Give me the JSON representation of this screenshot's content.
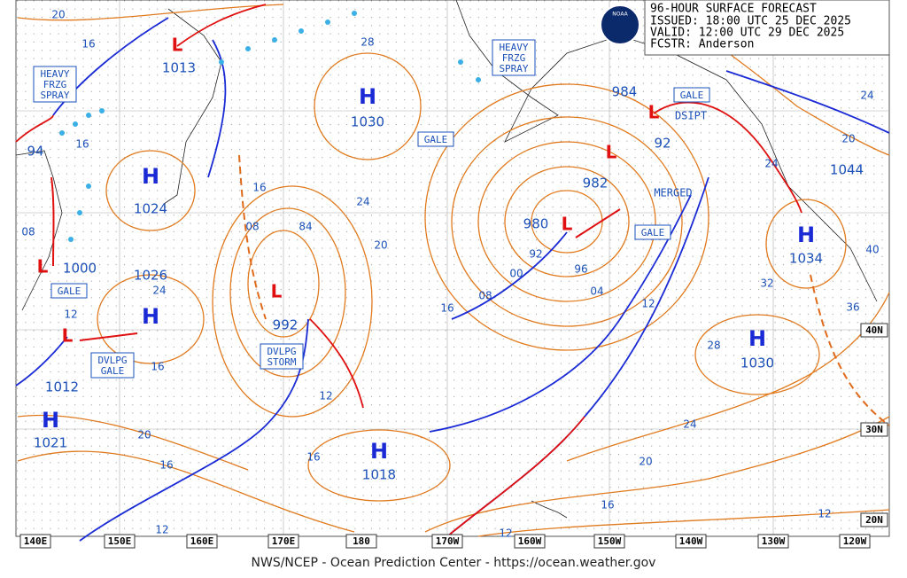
{
  "header": {
    "title": "96-HOUR SURFACE FORECAST",
    "issued": "ISSUED: 18:00 UTC 25 DEC 2025",
    "valid": "VALID:  12:00 UTC 29 DEC 2025",
    "forecaster": "FCSTR:  Anderson"
  },
  "logo": "NOAA",
  "footer": "NWS/NCEP - Ocean Prediction Center - https://ocean.weather.gov",
  "longitude_labels": [
    "140E",
    "150E",
    "160E",
    "170E",
    "180",
    "170W",
    "160W",
    "150W",
    "140W",
    "130W",
    "120W"
  ],
  "latitude_labels": [
    "40N",
    "30N",
    "20N"
  ],
  "highs": [
    {
      "symbol": "H",
      "pressure": "1030"
    },
    {
      "symbol": "H",
      "pressure": "1024"
    },
    {
      "symbol": "H",
      "pressure": "1026"
    },
    {
      "symbol": "H",
      "pressure": "1021"
    },
    {
      "symbol": "H",
      "pressure": "1018"
    },
    {
      "symbol": "H",
      "pressure": "1034"
    },
    {
      "symbol": "H",
      "pressure": "1030"
    }
  ],
  "lows": [
    {
      "symbol": "L",
      "pressure": "1013"
    },
    {
      "symbol": "L",
      "pressure": "1000"
    },
    {
      "symbol": "L",
      "pressure": "1012"
    },
    {
      "symbol": "L",
      "pressure": "992"
    },
    {
      "symbol": "L",
      "pressure": "980"
    },
    {
      "symbol": "L",
      "pressure": "982"
    },
    {
      "symbol": "L",
      "pressure": "984"
    }
  ],
  "other_pressure_labels": [
    "94",
    "92",
    "1044"
  ],
  "warnings": [
    {
      "lines": [
        "HEAVY",
        "FRZG",
        "SPRAY"
      ]
    },
    {
      "lines": [
        "GALE"
      ]
    },
    {
      "lines": [
        "DVLPG",
        "GALE"
      ]
    },
    {
      "lines": [
        "DVLPG",
        "STORM"
      ]
    },
    {
      "lines": [
        "GALE"
      ]
    },
    {
      "lines": [
        "HEAVY",
        "FRZG",
        "SPRAY"
      ]
    },
    {
      "lines": [
        "GALE"
      ]
    },
    {
      "lines": [
        "GALE"
      ]
    }
  ],
  "annotations": [
    "DSIPT",
    "MERGED"
  ],
  "isobar_labels": [
    "20",
    "16",
    "28",
    "16",
    "08",
    "12",
    "24",
    "16",
    "20",
    "16",
    "12",
    "16",
    "08",
    "84",
    "24",
    "20",
    "12",
    "16",
    "92",
    "00",
    "96",
    "04",
    "08",
    "16",
    "12",
    "28",
    "24",
    "20",
    "16",
    "12",
    "12",
    "32",
    "36",
    "40",
    "24",
    "20",
    "24"
  ]
}
